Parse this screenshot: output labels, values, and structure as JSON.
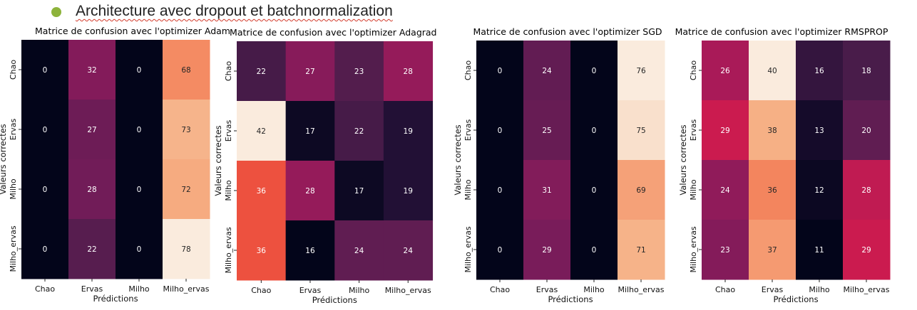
{
  "slide": {
    "title": "Architecture avec dropout et batchnormalization"
  },
  "chart_data": [
    {
      "type": "heatmap",
      "title": "Matrice de confusion avec l'optimizer Adam",
      "xlabel": "Prédictions",
      "ylabel": "Valeurs correctes",
      "x_categories": [
        "Chao",
        "Ervas",
        "Milho",
        "Milho_ervas"
      ],
      "y_categories": [
        "Chao",
        "Ervas",
        "Milho",
        "Milho_ervas"
      ],
      "values": [
        [
          0,
          32,
          0,
          68
        ],
        [
          0,
          27,
          0,
          73
        ],
        [
          0,
          28,
          0,
          72
        ],
        [
          0,
          22,
          0,
          78
        ]
      ],
      "vmin": 0,
      "vmax": 78,
      "colorscale": "rocket"
    },
    {
      "type": "heatmap",
      "title": "Matrice de confusion avec l'optimizer Adagrad",
      "xlabel": "Prédictions",
      "ylabel": "Valeurs correctes",
      "x_categories": [
        "Chao",
        "Ervas",
        "Milho",
        "Milho_ervas"
      ],
      "y_categories": [
        "Chao",
        "Ervas",
        "Milho",
        "Milho_ervas"
      ],
      "values": [
        [
          22,
          27,
          23,
          28
        ],
        [
          42,
          17,
          22,
          19
        ],
        [
          36,
          28,
          17,
          19
        ],
        [
          36,
          16,
          24,
          24
        ]
      ],
      "vmin": 16,
      "vmax": 42,
      "colorscale": "rocket"
    },
    {
      "type": "heatmap",
      "title": "Matrice de confusion avec l'optimizer SGD",
      "xlabel": "Prédictions",
      "ylabel": "Valeurs correctes",
      "x_categories": [
        "Chao",
        "Ervas",
        "Milho",
        "Milho_ervas"
      ],
      "y_categories": [
        "Chao",
        "Ervas",
        "Milho",
        "Milho_ervas"
      ],
      "values": [
        [
          0,
          24,
          0,
          76
        ],
        [
          0,
          25,
          0,
          75
        ],
        [
          0,
          31,
          0,
          69
        ],
        [
          0,
          29,
          0,
          71
        ]
      ],
      "vmin": 0,
      "vmax": 76,
      "colorscale": "rocket"
    },
    {
      "type": "heatmap",
      "title": "Matrice de confusion avec l'optimizer RMSPROP",
      "xlabel": "Prédictions",
      "ylabel": "Valeurs correctes",
      "x_categories": [
        "Chao",
        "Ervas",
        "Milho",
        "Milho_ervas"
      ],
      "y_categories": [
        "Chao",
        "Ervas",
        "Milho",
        "Milho_ervas"
      ],
      "values": [
        [
          26,
          40,
          16,
          18
        ],
        [
          29,
          38,
          13,
          20
        ],
        [
          24,
          36,
          12,
          28
        ],
        [
          23,
          37,
          11,
          29
        ]
      ],
      "vmin": 11,
      "vmax": 40,
      "colorscale": "rocket"
    }
  ]
}
